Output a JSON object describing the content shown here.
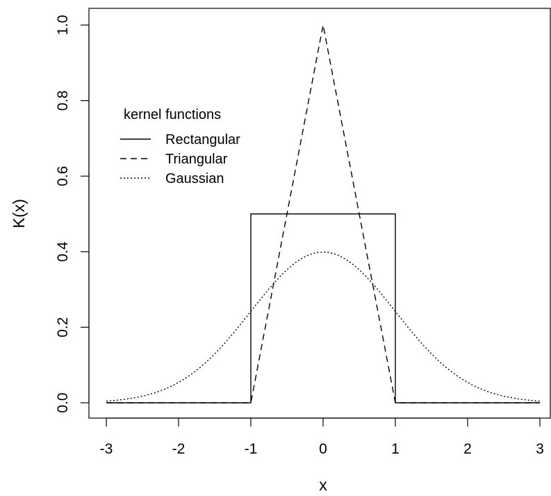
{
  "chart_data": {
    "type": "line",
    "title": "",
    "xlabel": "x",
    "ylabel": "K(x)",
    "xlim": [
      -3,
      3
    ],
    "ylim": [
      0,
      1
    ],
    "x_ticks": [
      "-3",
      "-2",
      "-1",
      "0",
      "1",
      "2",
      "3"
    ],
    "y_ticks": [
      "0.0",
      "0.2",
      "0.4",
      "0.6",
      "0.8",
      "1.0"
    ],
    "grid": false,
    "legend": {
      "title": "kernel functions",
      "placement": "top-left",
      "entries": [
        "Rectangular",
        "Triangular",
        "Gaussian"
      ]
    },
    "series": [
      {
        "name": "Rectangular",
        "line_style": "solid",
        "x": [
          -3,
          -1,
          -1,
          1,
          1,
          3
        ],
        "y": [
          0,
          0,
          0.5,
          0.5,
          0,
          0
        ]
      },
      {
        "name": "Triangular",
        "line_style": "dashed",
        "x": [
          -3,
          -1,
          0,
          1,
          3
        ],
        "y": [
          0,
          0,
          1,
          0,
          0
        ]
      },
      {
        "name": "Gaussian",
        "line_style": "dotted",
        "x": [
          -3,
          -2.5,
          -2,
          -1.5,
          -1,
          -0.5,
          0,
          0.5,
          1,
          1.5,
          2,
          2.5,
          3
        ],
        "y": [
          0.0044,
          0.0175,
          0.054,
          0.1295,
          0.242,
          0.3521,
          0.3989,
          0.3521,
          0.242,
          0.1295,
          0.054,
          0.0175,
          0.0044
        ]
      }
    ]
  }
}
